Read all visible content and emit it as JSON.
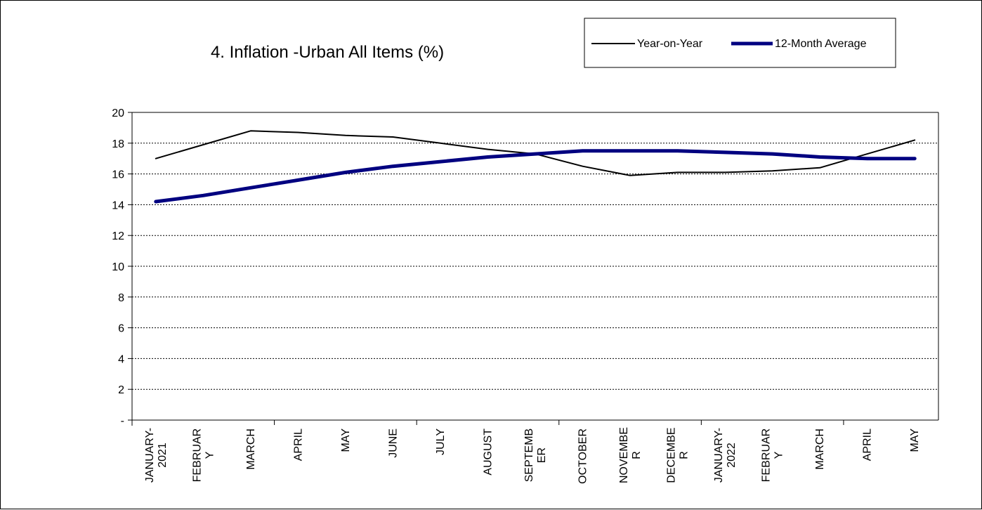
{
  "chart_data": {
    "type": "line",
    "title": "4. Inflation -Urban All Items (%)",
    "xlabel": "",
    "ylabel": "",
    "ylim": [
      0,
      20
    ],
    "y_ticks": [
      "-",
      "2",
      "4",
      "6",
      "8",
      "10",
      "12",
      "14",
      "16",
      "18",
      "20"
    ],
    "grid": true,
    "legend_position": "top-right",
    "categories": [
      "JANUARY-2021",
      "FEBRUARY",
      "MARCH",
      "APRIL",
      "MAY",
      "JUNE",
      "JULY",
      "AUGUST",
      "SEPTEMBER",
      "OCTOBER",
      "NOVEMBER",
      "DECEMBER",
      "JANUARY-2022",
      "FEBRUARY",
      "MARCH",
      "APRIL",
      "MAY"
    ],
    "category_label_lines": [
      [
        "JANUARY-",
        "2021"
      ],
      [
        "FEBRUAR",
        "Y"
      ],
      [
        "MARCH"
      ],
      [
        "APRIL"
      ],
      [
        "MAY"
      ],
      [
        "JUNE"
      ],
      [
        "JULY"
      ],
      [
        "AUGUST"
      ],
      [
        "SEPTEMB",
        "ER"
      ],
      [
        "OCTOBER"
      ],
      [
        "NOVEMBE",
        "R"
      ],
      [
        "DECEMBE",
        "R"
      ],
      [
        "JANUARY-",
        "2022"
      ],
      [
        "FEBRUAR",
        "Y"
      ],
      [
        "MARCH"
      ],
      [
        "APRIL"
      ],
      [
        "MAY"
      ]
    ],
    "series": [
      {
        "name": "Year-on-Year",
        "color": "#000000",
        "values": [
          17.0,
          17.9,
          18.8,
          18.7,
          18.5,
          18.4,
          18.0,
          17.6,
          17.3,
          16.5,
          15.9,
          16.1,
          16.1,
          16.2,
          16.4,
          17.3,
          18.2
        ]
      },
      {
        "name": "12-Month Average",
        "color": "#000080",
        "values": [
          14.2,
          14.6,
          15.1,
          15.6,
          16.1,
          16.5,
          16.8,
          17.1,
          17.3,
          17.5,
          17.5,
          17.5,
          17.4,
          17.3,
          17.1,
          17.0,
          17.0
        ]
      }
    ]
  }
}
